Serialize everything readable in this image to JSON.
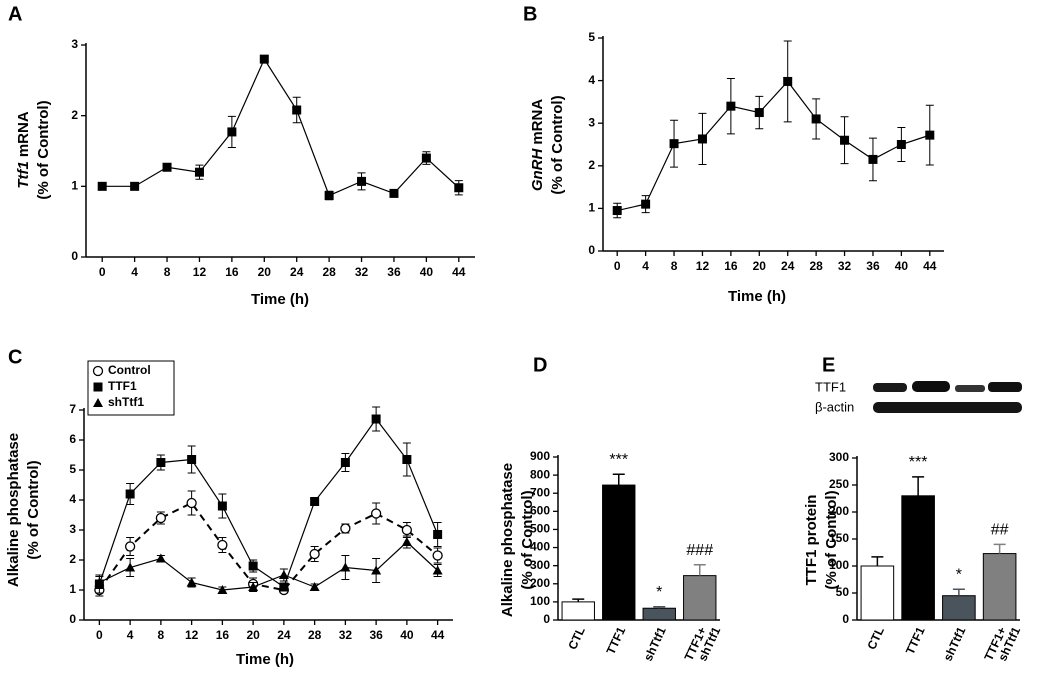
{
  "chart_data": [
    {
      "type": "line",
      "panel": "A",
      "y_label": {
        "italic": "Ttf1",
        "text": "mRNA"
      },
      "y_label2": "(% of Control)",
      "x_label": "Time (h)",
      "x": [
        0,
        4,
        8,
        12,
        16,
        20,
        24,
        28,
        32,
        36,
        40,
        44
      ],
      "xlim": [
        -2,
        46
      ],
      "xticks": [
        0,
        4,
        8,
        12,
        16,
        20,
        24,
        28,
        32,
        36,
        40,
        44
      ],
      "ylim": [
        0,
        3
      ],
      "yticks": [
        0,
        1,
        2,
        3
      ],
      "series": [
        {
          "color": "#000000",
          "marker": "square",
          "values": [
            1.0,
            1.0,
            1.27,
            1.2,
            1.77,
            2.8,
            2.08,
            0.87,
            1.07,
            0.9,
            1.4,
            0.98
          ],
          "errors": [
            0.05,
            0.03,
            0.05,
            0.1,
            0.22,
            0.05,
            0.18,
            0.06,
            0.12,
            0.03,
            0.09,
            0.1
          ]
        }
      ]
    },
    {
      "type": "line",
      "panel": "B",
      "y_label": {
        "italic": "GnRH",
        "text": "mRNA"
      },
      "y_label2": "(% of Control)",
      "x_label": "Time (h)",
      "x": [
        0,
        4,
        8,
        12,
        16,
        20,
        24,
        28,
        32,
        36,
        40,
        44
      ],
      "xlim": [
        -2,
        46
      ],
      "xticks": [
        0,
        4,
        8,
        12,
        16,
        20,
        24,
        28,
        32,
        36,
        40,
        44
      ],
      "ylim": [
        0,
        5
      ],
      "yticks": [
        0,
        1,
        2,
        3,
        4,
        5
      ],
      "series": [
        {
          "color": "#000000",
          "marker": "square",
          "values": [
            0.95,
            1.1,
            2.52,
            2.63,
            3.4,
            3.25,
            3.98,
            3.1,
            2.6,
            2.15,
            2.5,
            2.72
          ],
          "errors": [
            0.17,
            0.2,
            0.55,
            0.6,
            0.65,
            0.38,
            0.95,
            0.47,
            0.55,
            0.5,
            0.4,
            0.7
          ]
        }
      ]
    },
    {
      "type": "line",
      "panel": "C",
      "y_label": {
        "italic": "",
        "text": "Alkaline phosphatase"
      },
      "y_label2": "(% of Control)",
      "x_label": "Time (h)",
      "x": [
        0,
        4,
        8,
        12,
        16,
        20,
        24,
        28,
        32,
        36,
        40,
        44
      ],
      "xlim": [
        -2,
        46
      ],
      "xticks": [
        0,
        4,
        8,
        12,
        16,
        20,
        24,
        28,
        32,
        36,
        40,
        44
      ],
      "ylim": [
        0,
        7
      ],
      "yticks": [
        0,
        1,
        2,
        3,
        4,
        5,
        6,
        7
      ],
      "series": [
        {
          "name": "Control",
          "color": "#000000",
          "marker": "circle-open",
          "dashed": true,
          "values": [
            1.0,
            2.45,
            3.4,
            3.9,
            2.5,
            1.2,
            1.0,
            2.2,
            3.05,
            3.55,
            3.0,
            2.15
          ],
          "errors": [
            0.2,
            0.3,
            0.2,
            0.4,
            0.25,
            0.2,
            0.1,
            0.25,
            0.15,
            0.35,
            0.25,
            0.25
          ]
        },
        {
          "name": "TTF1",
          "color": "#000000",
          "marker": "square",
          "values": [
            1.2,
            4.2,
            5.25,
            5.35,
            3.8,
            1.8,
            1.1,
            3.95,
            5.25,
            6.7,
            5.35,
            2.85
          ],
          "errors": [
            0.3,
            0.35,
            0.25,
            0.45,
            0.4,
            0.2,
            0.1,
            0.05,
            0.3,
            0.4,
            0.55,
            0.4
          ]
        },
        {
          "name": "shTtf1",
          "color": "#000000",
          "marker": "triangle",
          "values": [
            1.25,
            1.75,
            2.05,
            1.25,
            1.0,
            1.1,
            1.5,
            1.1,
            1.75,
            1.65,
            2.6,
            1.65
          ],
          "errors": [
            0.2,
            0.3,
            0.1,
            0.15,
            0.1,
            0.15,
            0.2,
            0.1,
            0.4,
            0.4,
            0.2,
            0.2
          ]
        }
      ]
    },
    {
      "type": "bar",
      "panel": "D",
      "y_label": {
        "italic": "",
        "text": "Alkaline phosphatase"
      },
      "y_label2": "(% of Control)",
      "categories": [
        [
          "CTL"
        ],
        [
          "TTF1"
        ],
        [
          "shTtf1"
        ],
        [
          "TTF1+",
          "shTtf1"
        ]
      ],
      "values": [
        100,
        745,
        65,
        245
      ],
      "errors": [
        15,
        60,
        8,
        60
      ],
      "colors": [
        "#ffffff",
        "#000000",
        "#4a545c",
        "#808080"
      ],
      "annotations": [
        null,
        "***",
        "*",
        "###"
      ],
      "ylim": [
        0,
        900
      ],
      "yticks": [
        0,
        100,
        200,
        300,
        400,
        500,
        600,
        700,
        800,
        900
      ]
    },
    {
      "type": "bar",
      "panel": "E",
      "y_label": {
        "italic": "",
        "text": "TTF1 protein"
      },
      "y_label2": "(% of Control)",
      "blot_labels": [
        "TTF1",
        "β-actin"
      ],
      "categories": [
        [
          "CTL"
        ],
        [
          "TTF1"
        ],
        [
          "shTtf1"
        ],
        [
          "TTF1+",
          "shTtf1"
        ]
      ],
      "values": [
        100,
        230,
        45,
        123
      ],
      "errors": [
        17,
        35,
        12,
        17
      ],
      "colors": [
        "#ffffff",
        "#000000",
        "#4a545c",
        "#808080"
      ],
      "annotations": [
        null,
        "***",
        "*",
        "##"
      ],
      "ylim": [
        0,
        300
      ],
      "yticks": [
        0,
        50,
        100,
        150,
        200,
        250,
        300
      ]
    }
  ]
}
